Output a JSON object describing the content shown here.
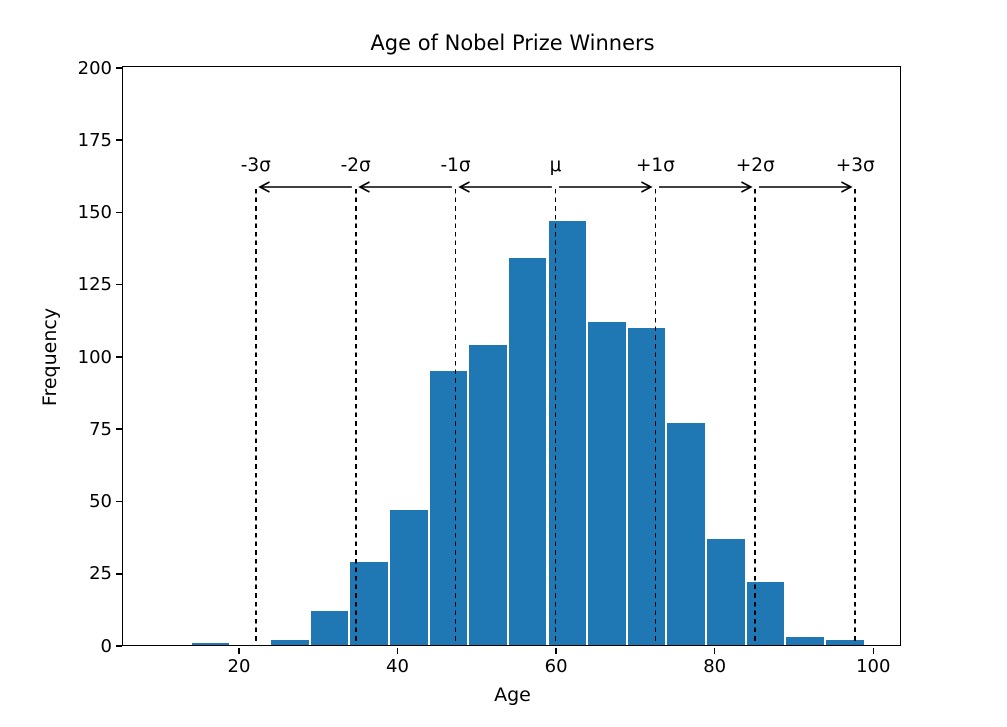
{
  "figure": {
    "background": "#ffffff",
    "text_color": "#000000"
  },
  "chart_data": {
    "type": "bar",
    "subtype": "histogram",
    "title": "Age of Nobel Prize Winners",
    "xlabel": "Age",
    "ylabel": "Frequency",
    "bar_color": "#1f77b4",
    "bar_edge_color": "#ffffff",
    "axis_color": "#000000",
    "grid": false,
    "legend": false,
    "xlim": [
      5.5,
      103.5
    ],
    "ylim": [
      0,
      200
    ],
    "xticks": [
      20,
      40,
      60,
      80,
      100
    ],
    "yticks": [
      0,
      25,
      50,
      75,
      100,
      125,
      150,
      175,
      200
    ],
    "bin_edges": [
      14,
      19,
      24,
      29,
      34,
      39,
      44,
      49,
      54,
      59,
      64,
      69,
      74,
      79,
      84,
      89,
      94,
      99
    ],
    "counts": [
      1,
      0,
      2,
      12,
      29,
      47,
      95,
      104,
      134,
      147,
      112,
      110,
      77,
      37,
      22,
      3,
      2
    ],
    "mean": 60.0,
    "std": 12.6,
    "annotations": {
      "line_style": "dashed",
      "line_color": "#000000",
      "line_top_value": 158,
      "arrow_y_value": 158.5,
      "label_y_value": 166,
      "sigma_lines": [
        {
          "label": "-3σ",
          "age": 22.2
        },
        {
          "label": "-2σ",
          "age": 34.8
        },
        {
          "label": "-1σ",
          "age": 47.4
        },
        {
          "label": "μ",
          "age": 60.0
        },
        {
          "label": "+1σ",
          "age": 72.6
        },
        {
          "label": "+2σ",
          "age": 85.2
        },
        {
          "label": "+3σ",
          "age": 97.8
        }
      ]
    }
  }
}
